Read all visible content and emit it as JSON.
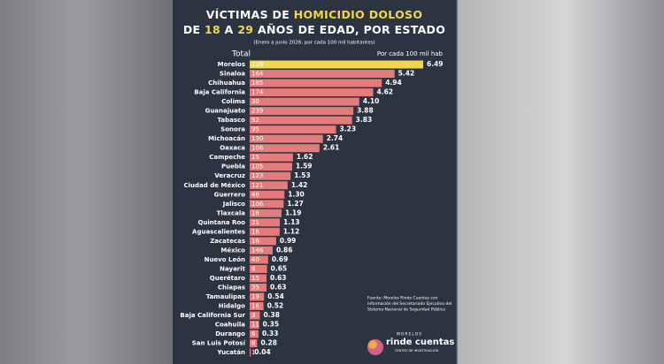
{
  "chart_data": {
    "type": "hbar",
    "title_lines": [
      [
        {
          "text": "VÍCTIMAS DE",
          "highlight": false
        },
        {
          "text": "HOMICIDIO DOLOSO",
          "highlight": true
        }
      ],
      [
        {
          "text": "DE",
          "highlight": false
        },
        {
          "text": "18",
          "highlight": true
        },
        {
          "text": "A",
          "highlight": false
        },
        {
          "text": "29",
          "highlight": true
        },
        {
          "text": "AÑOS DE EDAD, POR ESTADO",
          "highlight": false
        }
      ]
    ],
    "subtitle": "(Enero a junio 2026, por cada 100 mil habitantes)",
    "totals_header": "Total",
    "values_header": "Por cada 100 mil hab",
    "categories": [
      "Morelos",
      "Sinaloa",
      "Chihuahua",
      "Baja California",
      "Colima",
      "Guanajuato",
      "Tabasco",
      "Sonora",
      "Michoacán",
      "Oaxaca",
      "Campeche",
      "Puebla",
      "Veracruz",
      "Ciudad de México",
      "Guerrero",
      "Jalisco",
      "Tlaxcala",
      "Quintana Roo",
      "Aguascalientes",
      "Zacatecas",
      "México",
      "Nuevo León",
      "Nayarit",
      "Querétaro",
      "Chiapas",
      "Tamaulipas",
      "Hidalgo",
      "Baja California Sur",
      "Coahuila",
      "Durango",
      "San Luis Potosí",
      "Yucatán"
    ],
    "totals": [
      128,
      164,
      185,
      174,
      30,
      239,
      92,
      95,
      130,
      108,
      15,
      105,
      123,
      121,
      46,
      106,
      16,
      21,
      16,
      16,
      146,
      40,
      8,
      15,
      35,
      19,
      16,
      3,
      11,
      6,
      8,
      1
    ],
    "values": [
      6.49,
      5.42,
      4.94,
      4.62,
      4.1,
      3.88,
      3.83,
      3.23,
      2.74,
      2.61,
      1.62,
      1.59,
      1.53,
      1.42,
      1.3,
      1.27,
      1.19,
      1.13,
      1.12,
      0.99,
      0.86,
      0.69,
      0.65,
      0.63,
      0.63,
      0.54,
      0.52,
      0.38,
      0.35,
      0.33,
      0.28,
      0.04
    ],
    "value_labels": [
      "6.49",
      "5.42",
      "4.94",
      "4.62",
      "4.10",
      "3.88",
      "3.83",
      "3.23",
      "2.74",
      "2.61",
      "1.62",
      "1.59",
      "1.53",
      "1.42",
      "1.30",
      "1.27",
      "1.19",
      "1.13",
      "1.12",
      "0.99",
      "0.86",
      "0.69",
      "0.65",
      "0.63",
      "0.63",
      "0.54",
      "0.52",
      "0.38",
      "0.35",
      "0.33",
      "0.28",
      "0.04"
    ],
    "color": "#e47c7c",
    "highlight_color": "#f3d64e",
    "highlight_index": 0,
    "source": [
      "Fuente: Morelos Rinde Cuentas con",
      "información del Secretariado Ejecutivo del",
      "Sistema Nacional de Seguridad Pública"
    ],
    "logo": {
      "top": "MORELOS",
      "name": "rinde cuentas",
      "bottom": "CENTRO DE INVESTIGACIÓN"
    }
  }
}
